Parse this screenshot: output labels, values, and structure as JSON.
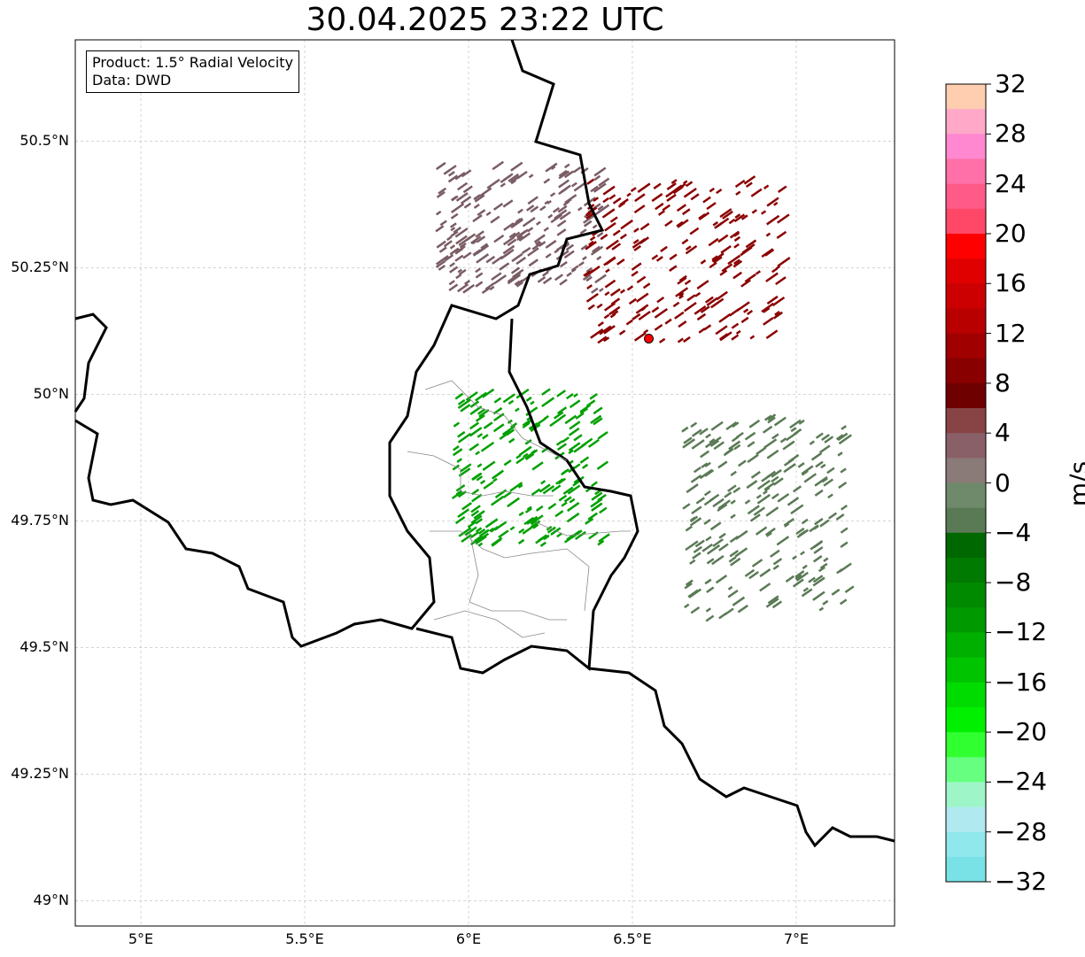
{
  "title": "30.04.2025 23:22 UTC",
  "infobox": {
    "product": "Product: 1.5° Radial Velocity",
    "data": "Data: DWD"
  },
  "axes": {
    "lat_ticks": [
      "50.5°N",
      "50.25°N",
      "50°N",
      "49.75°N",
      "49.5°N",
      "49.25°N",
      "49°N"
    ],
    "lon_ticks": [
      "5°E",
      "5.5°E",
      "6°E",
      "6.5°E",
      "7°E"
    ],
    "lat_range": [
      48.95,
      50.7
    ],
    "lon_range": [
      4.8,
      7.3
    ]
  },
  "radar_site": {
    "lon": 6.55,
    "lat": 50.11,
    "color": "#ff0000"
  },
  "colorbar": {
    "unit": "m/s",
    "range": [
      -32,
      32
    ],
    "ticks": [
      "32",
      "28",
      "24",
      "20",
      "16",
      "12",
      "8",
      "4",
      "0",
      "−4",
      "−8",
      "−12",
      "−16",
      "−20",
      "−24",
      "−28",
      "−32"
    ],
    "colors_top_to_bottom": [
      "#ffcdb0",
      "#ffa8c8",
      "#ff88d0",
      "#ff70a8",
      "#ff5a88",
      "#ff4868",
      "#ff0000",
      "#e00000",
      "#cc0000",
      "#b80000",
      "#a00000",
      "#880000",
      "#6e0000",
      "#884444",
      "#8a6068",
      "#8a7a78",
      "#6e8a6a",
      "#5a7a55",
      "#006800",
      "#007a00",
      "#008a00",
      "#009a00",
      "#00b000",
      "#00c400",
      "#00dc00",
      "#00f000",
      "#30ff30",
      "#66ff80",
      "#9ef5c8",
      "#b0eaf0",
      "#90e8ec",
      "#78e2e6"
    ]
  },
  "velocity_regions": [
    {
      "name": "outbound-northwest",
      "color": "#7a5c64",
      "lon": [
        5.9,
        6.4
      ],
      "lat": [
        50.2,
        50.45
      ]
    },
    {
      "name": "outbound-north",
      "color": "#8b0000",
      "lon": [
        6.35,
        6.95
      ],
      "lat": [
        50.1,
        50.42
      ]
    },
    {
      "name": "inbound-luxembourg",
      "color": "#00a000",
      "lon": [
        5.95,
        6.4
      ],
      "lat": [
        49.7,
        50.0
      ]
    },
    {
      "name": "inbound-southeast",
      "color": "#5a7a55",
      "lon": [
        6.65,
        7.15
      ],
      "lat": [
        49.55,
        49.95
      ]
    }
  ]
}
